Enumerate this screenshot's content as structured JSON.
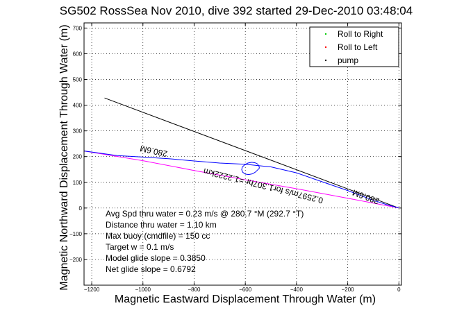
{
  "chart_data": {
    "type": "line",
    "title": "SG502 RossSea Nov 2010, dive 392 started 29-Dec-2010 03:48:04",
    "xlabel": "Magnetic Eastward Displacement Through Water (m)",
    "ylabel": "Magnetic Northward Displacement Through Water (m)",
    "xlim": [
      -1230,
      10
    ],
    "ylim": [
      -300,
      720
    ],
    "xticks": [
      -1200,
      -1000,
      -800,
      -600,
      -400,
      -200,
      0
    ],
    "yticks": [
      -200,
      -100,
      0,
      100,
      200,
      300,
      400,
      500,
      600,
      700
    ],
    "xtick_labels": [
      "−1200",
      "−1000",
      "−800",
      "−600",
      "−400",
      "−200",
      "0"
    ],
    "ytick_labels": [
      "−200",
      "−100",
      "0",
      "100",
      "200",
      "300",
      "400",
      "500",
      "600",
      "700"
    ],
    "grid": true,
    "legend_position": "top-right",
    "legend": [
      {
        "label": "Roll to Right",
        "color": "#00cc00",
        "marker": "dot"
      },
      {
        "label": "Roll to Left",
        "color": "#ff0000",
        "marker": "dot"
      },
      {
        "label": "pump",
        "color": "#000000",
        "marker": "dot"
      }
    ],
    "series": [
      {
        "color": "#000000",
        "x": [
          -1150,
          0
        ],
        "y": [
          428,
          0
        ]
      },
      {
        "color": "#ff00ff",
        "x": [
          -1230,
          -1000,
          -800,
          -600,
          -400,
          -200,
          0
        ],
        "y": [
          222,
          184,
          146,
          110,
          75,
          38,
          0
        ]
      },
      {
        "color": "#0000ff",
        "x": [
          -1230,
          -1100,
          -1000,
          -900,
          -800,
          -700,
          -600,
          -500,
          -400,
          -300,
          -200,
          -100,
          -50,
          -20,
          0
        ],
        "y": [
          222,
          204,
          198,
          192,
          183,
          175,
          170,
          160,
          137,
          102,
          68,
          30,
          14,
          6,
          0
        ]
      },
      {
        "color": "#0000ff",
        "x": [
          -545,
          -547,
          -553,
          -562,
          -575,
          -590,
          -603,
          -612,
          -614,
          -610,
          -600,
          -587,
          -572,
          -560,
          -553,
          -548,
          -545
        ],
        "y": [
          155,
          164,
          172,
          176,
          178,
          175,
          168,
          159,
          149,
          139,
          132,
          130,
          133,
          140,
          147,
          152,
          155
        ]
      }
    ],
    "path_labels": [
      {
        "text": "280.6M"
      },
      {
        "text": "0.2597m/s for1.307hr =1.2222km"
      },
      {
        "text": "280.6M"
      }
    ],
    "stats": [
      "Avg Spd thru water =  0.23 m/s @ 280.7   °M (292.7 °T)",
      "Distance thru water =  1.10 km",
      "Max buoy (cmdfile) = 150 cc",
      "Target w = 0.1 m/s",
      "Model glide slope = 0.3850",
      "Net glide slope = 0.6792"
    ]
  }
}
